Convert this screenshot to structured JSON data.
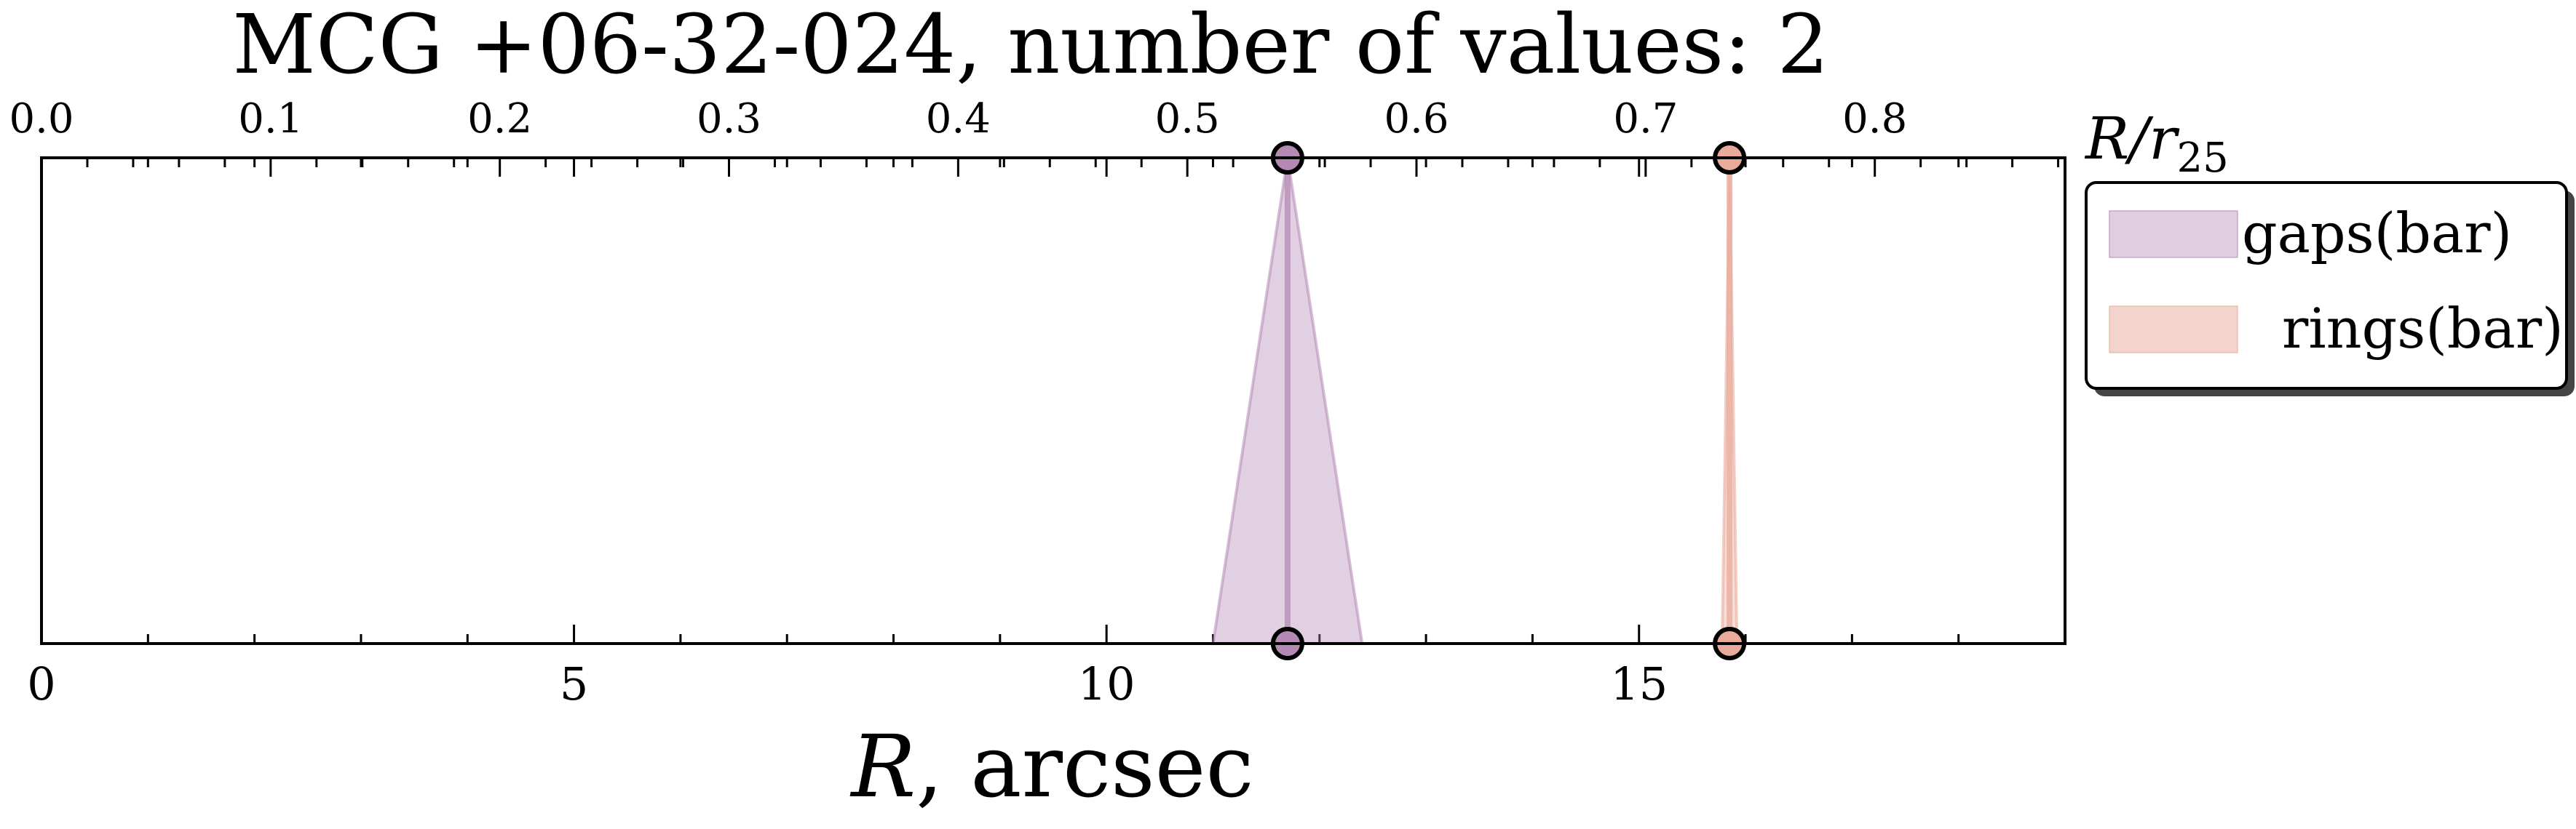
{
  "chart_data": {
    "type": "line",
    "title": "MCG +06-32-024, number of values: 2",
    "xlabel": {
      "italic": "R",
      "rest": ", arcsec"
    },
    "secondary_xlabel": {
      "base": "R/r",
      "sub": "25"
    },
    "xlim": [
      0,
      19
    ],
    "x_ticks": [
      0,
      5,
      10,
      15
    ],
    "secondary_xlim": [
      0,
      0.883
    ],
    "secondary_x_ticks": [
      0.0,
      0.1,
      0.2,
      0.3,
      0.4,
      0.5,
      0.6,
      0.7,
      0.8
    ],
    "yaxis_visible": false,
    "grid": false,
    "legend_position": "right-outside-top",
    "series": [
      {
        "name": "gaps(bar)",
        "x": 11.7,
        "error_low": 11.0,
        "error_high": 12.4,
        "color": "#b489b4"
      },
      {
        "name": "rings(bar)",
        "x": 15.85,
        "error_low": 15.78,
        "error_high": 15.92,
        "color": "#e8aa9a"
      }
    ]
  }
}
